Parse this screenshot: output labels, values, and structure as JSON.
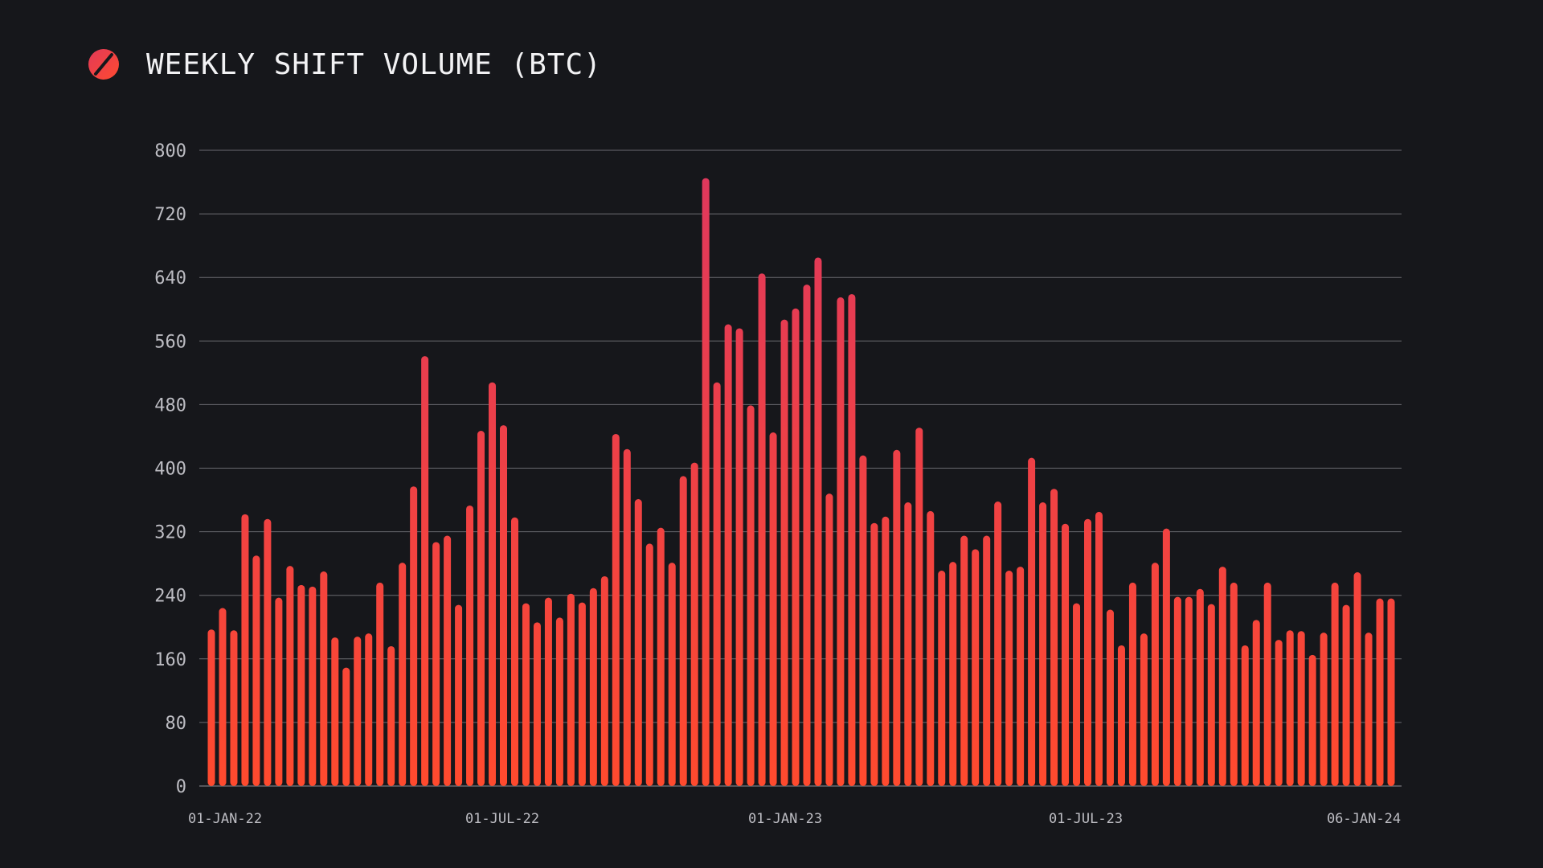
{
  "header": {
    "title": "WEEKLY SHIFT VOLUME (BTC)",
    "logo_icon": "slashed-circle-logo-icon"
  },
  "colors": {
    "background": "#16171b",
    "bar_top": "#e23a58",
    "bar_bottom": "#ff4a30",
    "grid": "#6a6a70",
    "text": "#bdbdc3"
  },
  "chart_data": {
    "type": "bar",
    "title": "WEEKLY SHIFT VOLUME (BTC)",
    "xlabel": "",
    "ylabel": "",
    "ylim": [
      0,
      800
    ],
    "yticks": [
      0,
      80,
      160,
      240,
      320,
      400,
      480,
      560,
      640,
      720,
      800
    ],
    "xtick_labels": [
      "01-JAN-22",
      "01-JUL-22",
      "01-JAN-23",
      "01-JUL-23",
      "06-JAN-24"
    ],
    "grid": true,
    "legend": "none",
    "categories": [
      "2022-01-01",
      "2022-01-08",
      "2022-01-15",
      "2022-01-22",
      "2022-01-29",
      "2022-02-05",
      "2022-02-12",
      "2022-02-19",
      "2022-02-26",
      "2022-03-05",
      "2022-03-12",
      "2022-03-19",
      "2022-03-26",
      "2022-04-02",
      "2022-04-09",
      "2022-04-16",
      "2022-04-23",
      "2022-04-30",
      "2022-05-07",
      "2022-05-14",
      "2022-05-21",
      "2022-05-28",
      "2022-06-04",
      "2022-06-11",
      "2022-06-18",
      "2022-06-25",
      "2022-07-02",
      "2022-07-09",
      "2022-07-16",
      "2022-07-23",
      "2022-07-30",
      "2022-08-06",
      "2022-08-13",
      "2022-08-20",
      "2022-08-27",
      "2022-09-03",
      "2022-09-10",
      "2022-09-17",
      "2022-09-24",
      "2022-10-01",
      "2022-10-08",
      "2022-10-15",
      "2022-10-22",
      "2022-10-29",
      "2022-11-05",
      "2022-11-12",
      "2022-11-19",
      "2022-11-26",
      "2022-12-03",
      "2022-12-10",
      "2022-12-17",
      "2022-12-24",
      "2022-12-31",
      "2023-01-07",
      "2023-01-14",
      "2023-01-21",
      "2023-01-28",
      "2023-02-04",
      "2023-02-11",
      "2023-02-18",
      "2023-02-25",
      "2023-03-04",
      "2023-03-11",
      "2023-03-18",
      "2023-03-25",
      "2023-04-01",
      "2023-04-08",
      "2023-04-15",
      "2023-04-22",
      "2023-04-29",
      "2023-05-06",
      "2023-05-13",
      "2023-05-20",
      "2023-05-27",
      "2023-06-03",
      "2023-06-10",
      "2023-06-17",
      "2023-06-24",
      "2023-07-01",
      "2023-07-08",
      "2023-07-15",
      "2023-07-22",
      "2023-07-29",
      "2023-08-05",
      "2023-08-12",
      "2023-08-19",
      "2023-08-26",
      "2023-09-02",
      "2023-09-09",
      "2023-09-16",
      "2023-09-23",
      "2023-09-30",
      "2023-10-07",
      "2023-10-14",
      "2023-10-21",
      "2023-10-28",
      "2023-11-04",
      "2023-11-11",
      "2023-11-18",
      "2023-11-25",
      "2023-12-02",
      "2023-12-09",
      "2023-12-16",
      "2023-12-23",
      "2023-12-30",
      "2024-01-06"
    ],
    "values": [
      197,
      224,
      196,
      342,
      290,
      336,
      237,
      277,
      253,
      251,
      270,
      187,
      149,
      188,
      192,
      256,
      176,
      281,
      377,
      541,
      307,
      315,
      228,
      353,
      447,
      508,
      454,
      338,
      230,
      206,
      237,
      212,
      242,
      231,
      249,
      264,
      443,
      424,
      361,
      305,
      325,
      281,
      390,
      407,
      765,
      508,
      581,
      576,
      479,
      645,
      445,
      587,
      601,
      631,
      665,
      368,
      615,
      619,
      416,
      331,
      339,
      423,
      357,
      451,
      346,
      271,
      282,
      315,
      298,
      315,
      358,
      271,
      276,
      413,
      357,
      374,
      330,
      230,
      336,
      345,
      222,
      177,
      256,
      192,
      281,
      324,
      238,
      238,
      248,
      229,
      276,
      256,
      177,
      209,
      256,
      184,
      196,
      195,
      165,
      193,
      256,
      228,
      269,
      193,
      236,
      236
    ]
  }
}
